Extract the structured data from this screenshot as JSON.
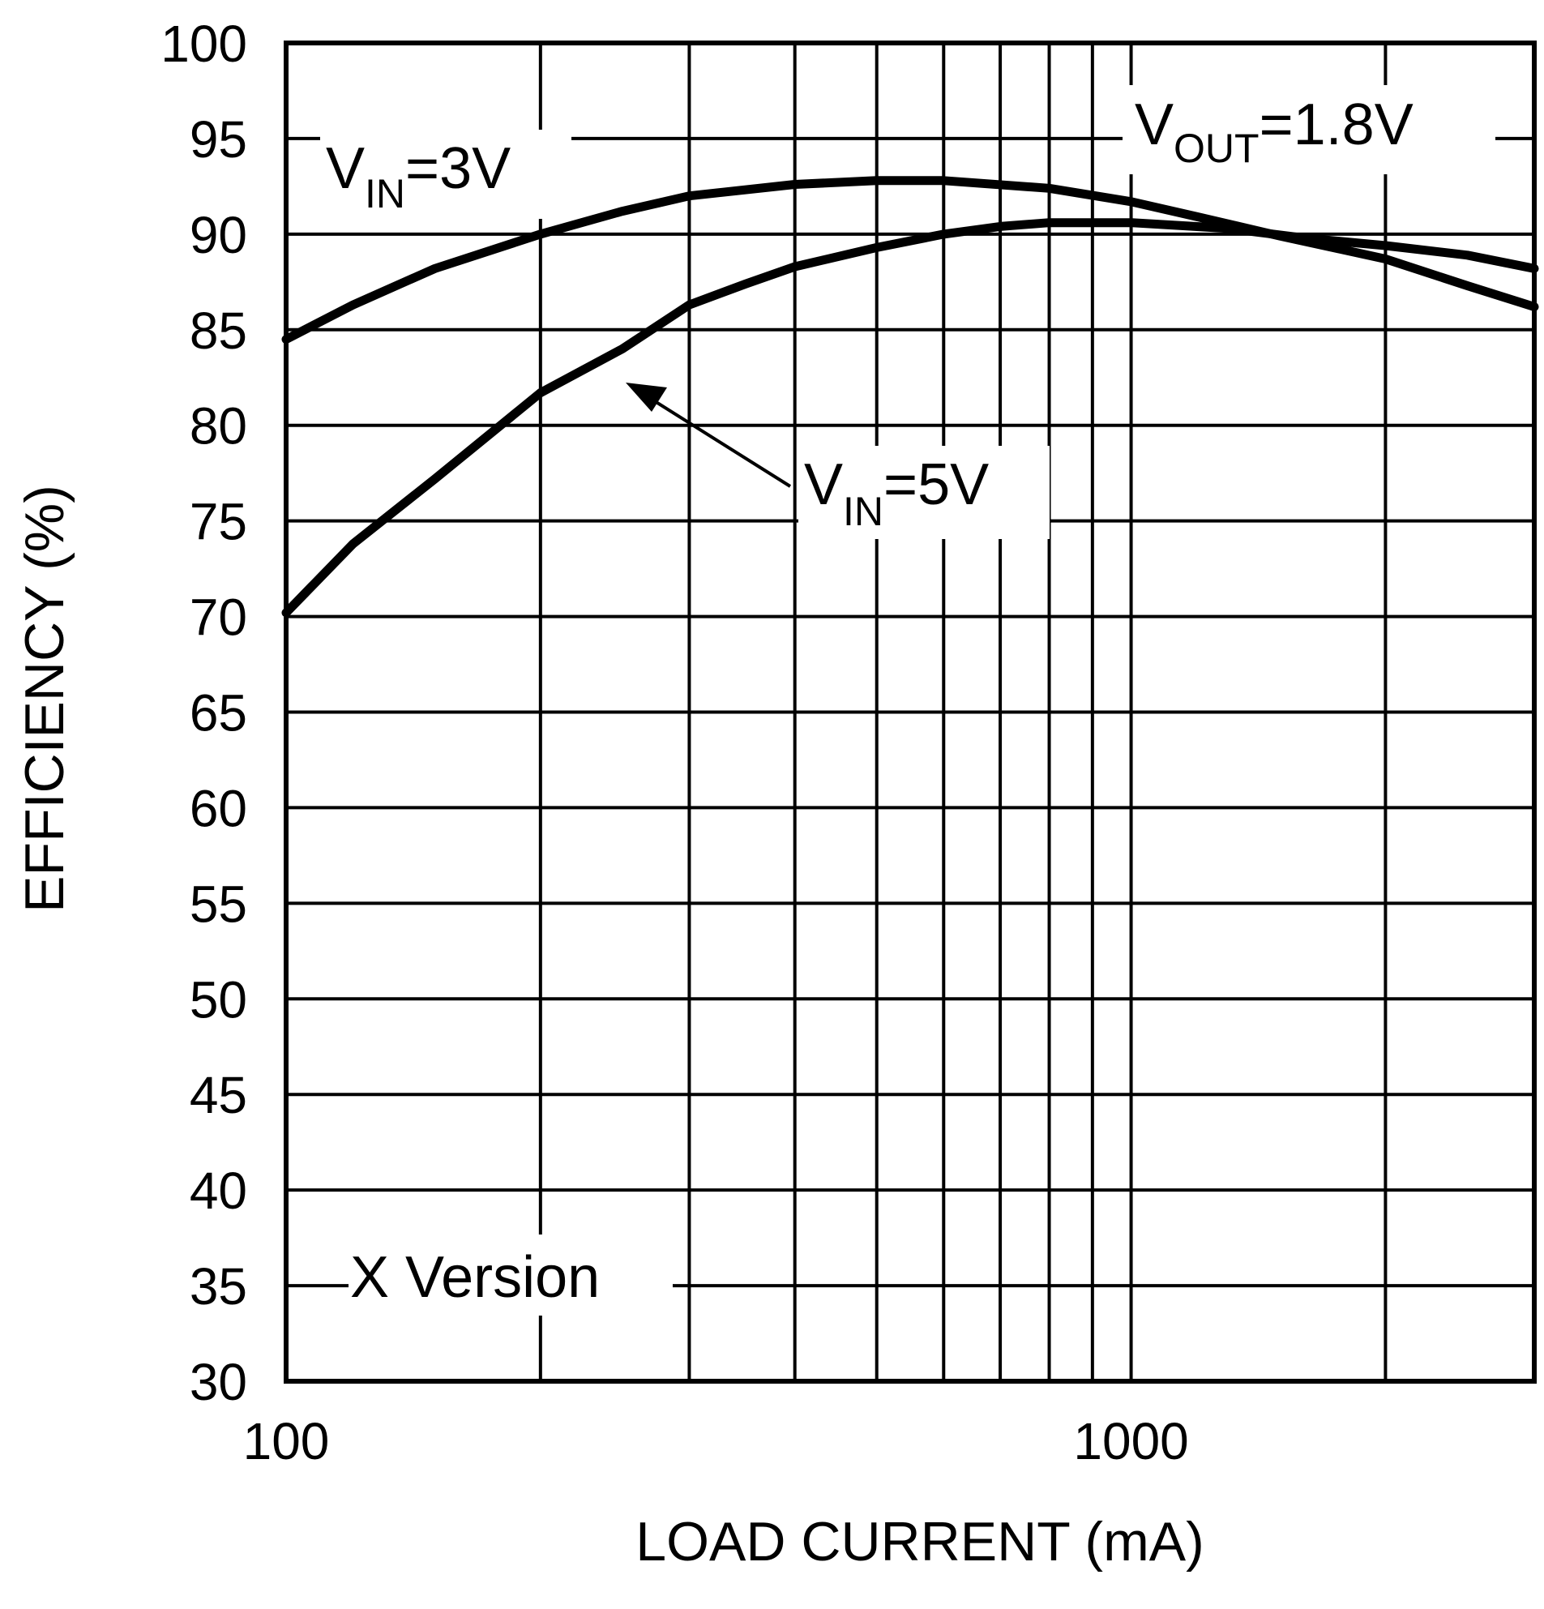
{
  "chart_data": {
    "type": "line",
    "xlabel": "LOAD CURRENT (mA)",
    "ylabel": "EFFICIENCY (%)",
    "x_scale": "log",
    "xlim": [
      100,
      3000
    ],
    "ylim": [
      30,
      100
    ],
    "x_ticks": [
      100,
      1000
    ],
    "x_tick_labels": [
      "100",
      "1000"
    ],
    "y_ticks": [
      30,
      35,
      40,
      45,
      50,
      55,
      60,
      65,
      70,
      75,
      80,
      85,
      90,
      95,
      100
    ],
    "y_tick_labels": [
      "30",
      "35",
      "40",
      "45",
      "50",
      "55",
      "60",
      "65",
      "70",
      "75",
      "80",
      "85",
      "90",
      "95",
      "100"
    ],
    "grid": true,
    "legend": "none",
    "series": [
      {
        "name": "VIN=3V",
        "x": [
          100,
          120,
          150,
          200,
          250,
          300,
          400,
          500,
          600,
          800,
          1000,
          1200,
          1500,
          2000,
          2500,
          3000
        ],
        "y": [
          84.5,
          86.3,
          88.2,
          90.0,
          91.2,
          92.0,
          92.6,
          92.8,
          92.8,
          92.4,
          91.7,
          90.9,
          89.9,
          88.7,
          87.3,
          86.2
        ]
      },
      {
        "name": "VIN=5V",
        "x": [
          100,
          120,
          150,
          200,
          250,
          300,
          350,
          400,
          500,
          600,
          700,
          800,
          1000,
          1300,
          1600,
          2000,
          2500,
          3000
        ],
        "y": [
          70.2,
          73.8,
          77.2,
          81.7,
          84.0,
          86.3,
          87.4,
          88.3,
          89.3,
          90.0,
          90.4,
          90.6,
          90.6,
          90.3,
          89.8,
          89.4,
          88.9,
          88.2
        ]
      }
    ],
    "annotations": {
      "vout": {
        "main": "V",
        "sub": "OUT",
        "rest": "=1.8V"
      },
      "vin3": {
        "main": "V",
        "sub": "IN",
        "rest": "=3V"
      },
      "vin5": {
        "main": "V",
        "sub": "IN",
        "rest": "=5V"
      },
      "version": "X Version"
    }
  }
}
